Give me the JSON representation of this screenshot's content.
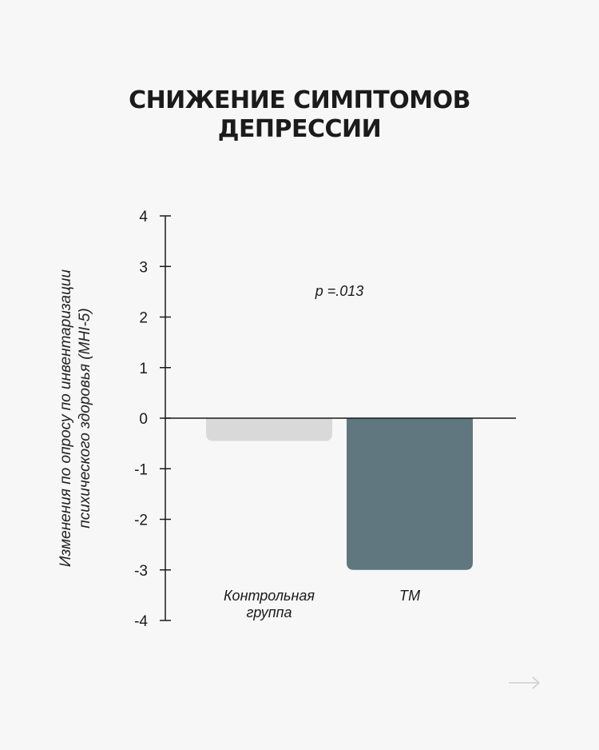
{
  "page": {
    "title_line1": "СНИЖЕНИЕ СИМПТОМОВ",
    "title_line2": "ДЕПРЕССИИ",
    "next_arrow_icon": "arrow-right-icon"
  },
  "chart_data": {
    "type": "bar",
    "title": "СНИЖЕНИЕ СИМПТОМОВ ДЕПРЕССИИ",
    "ylabel_line1": "Изменения по опросу по инвентаризации",
    "ylabel_line2": "психического здоровья (MHI-5)",
    "xlabel": "",
    "categories": [
      "Контрольная группа",
      "ТМ"
    ],
    "category_lines": [
      [
        "Контрольная",
        "группа"
      ],
      [
        "ТМ"
      ]
    ],
    "values": [
      -0.45,
      -3.0
    ],
    "colors": [
      "#d9d9d9",
      "#617780"
    ],
    "ylim": [
      -4,
      4
    ],
    "yticks": [
      4,
      3,
      2,
      1,
      0,
      -1,
      -2,
      -3,
      -4
    ],
    "annotation": "p =.013",
    "grid": false
  }
}
